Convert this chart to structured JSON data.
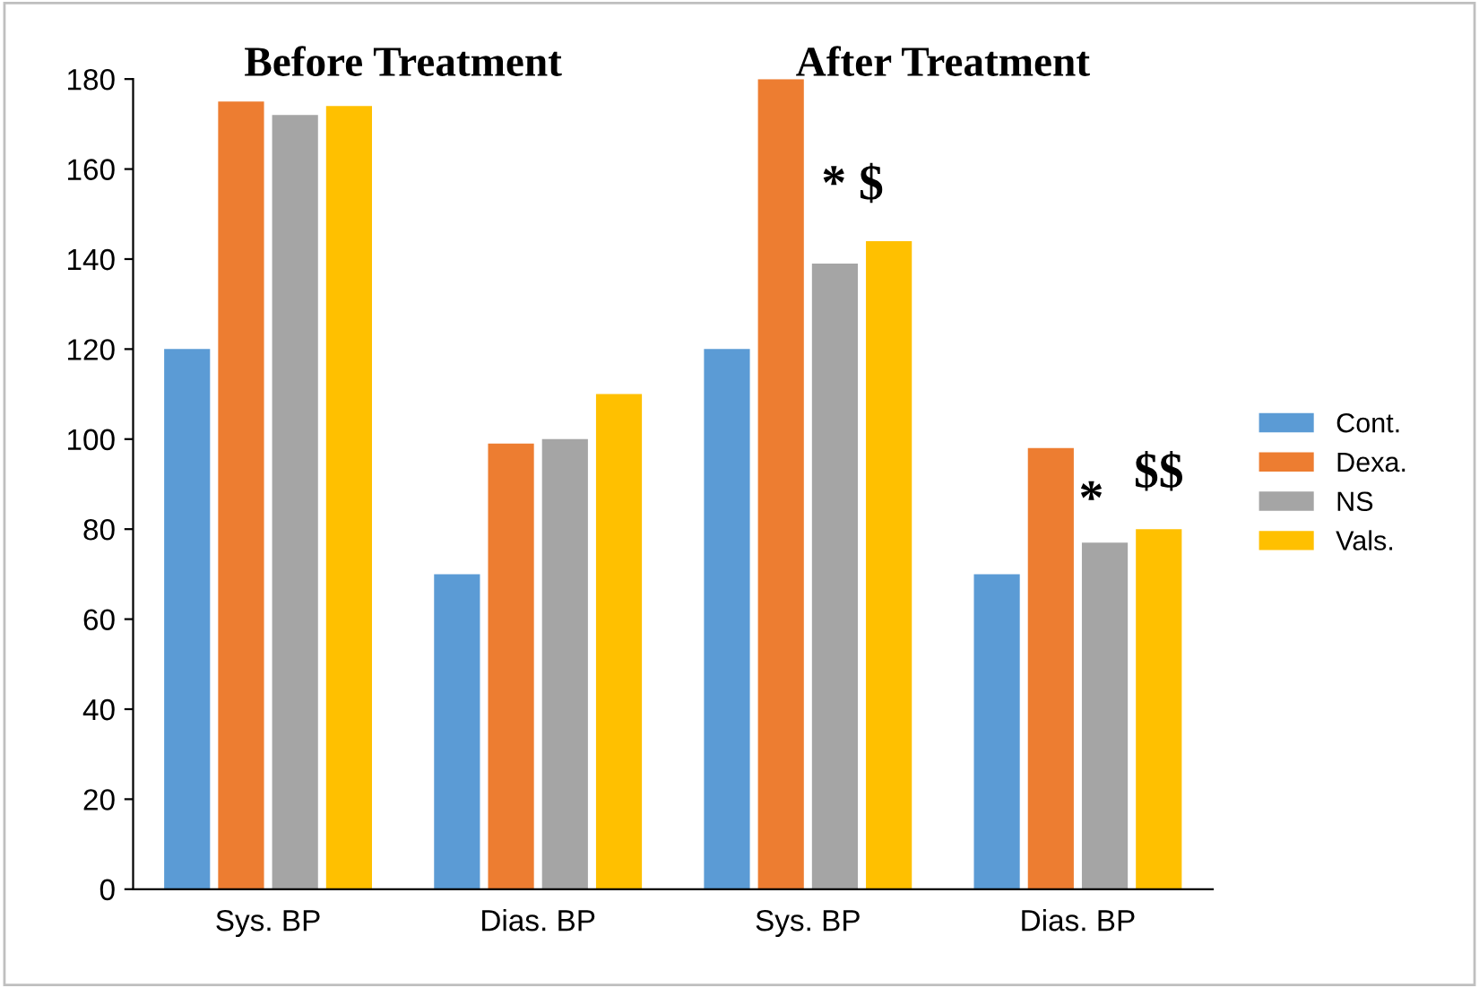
{
  "chart_data": {
    "type": "bar",
    "categories": [
      "Sys. BP",
      "Dias. BP",
      "Sys. BP",
      "Dias. BP"
    ],
    "series": [
      {
        "name": "Cont.",
        "color": "#5b9bd5",
        "values": [
          120,
          70,
          120,
          70
        ]
      },
      {
        "name": "Dexa.",
        "color": "#ed7d31",
        "values": [
          175,
          99,
          180,
          98
        ]
      },
      {
        "name": "NS",
        "color": "#a5a5a5",
        "values": [
          172,
          100,
          139,
          77
        ]
      },
      {
        "name": "Vals.",
        "color": "#ffc000",
        "values": [
          174,
          110,
          144,
          80
        ]
      }
    ],
    "ylim": [
      0,
      180
    ],
    "yticks": [
      0,
      20,
      40,
      60,
      80,
      100,
      120,
      140,
      160,
      180
    ],
    "grid": false,
    "legend": "right",
    "annotations": [
      "Before Treatment",
      "After Treatment",
      "* $",
      "*",
      "$$"
    ]
  }
}
